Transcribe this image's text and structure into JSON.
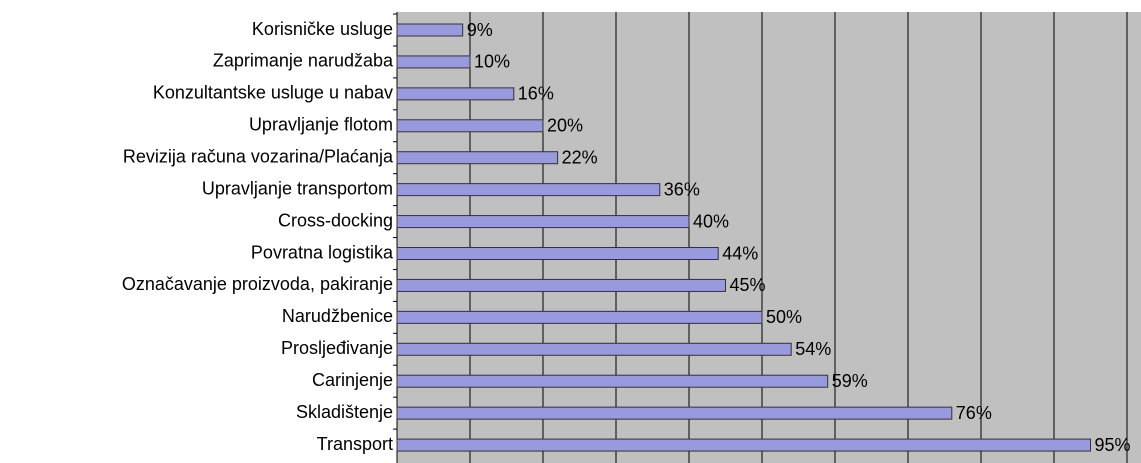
{
  "chart_data": {
    "type": "bar",
    "orientation": "horizontal",
    "categories": [
      "Korisničke usluge",
      "Zaprimanje narudžaba",
      "Konzultantske usluge u nabav",
      "Upravljanje flotom",
      "Revizija računa vozarina/Plaćanja",
      "Upravljanje transportom",
      "Cross-docking",
      "Povratna logistika",
      "Označavanje proizvoda, pakiranje",
      "Narudžbenice",
      "Prosljeđivanje",
      "Carinjenje",
      "Skladištenje",
      "Transport"
    ],
    "values": [
      9,
      10,
      16,
      20,
      22,
      36,
      40,
      44,
      45,
      50,
      54,
      59,
      76,
      95
    ],
    "value_labels": [
      "9%",
      "10%",
      "16%",
      "20%",
      "22%",
      "36%",
      "40%",
      "44%",
      "45%",
      "50%",
      "54%",
      "59%",
      "76%",
      "95%"
    ],
    "color": "#9999dd",
    "xlim": [
      0,
      100
    ],
    "xticks": [
      0,
      10,
      20,
      30,
      40,
      50,
      60,
      70,
      80,
      90,
      100
    ],
    "grid": true
  }
}
